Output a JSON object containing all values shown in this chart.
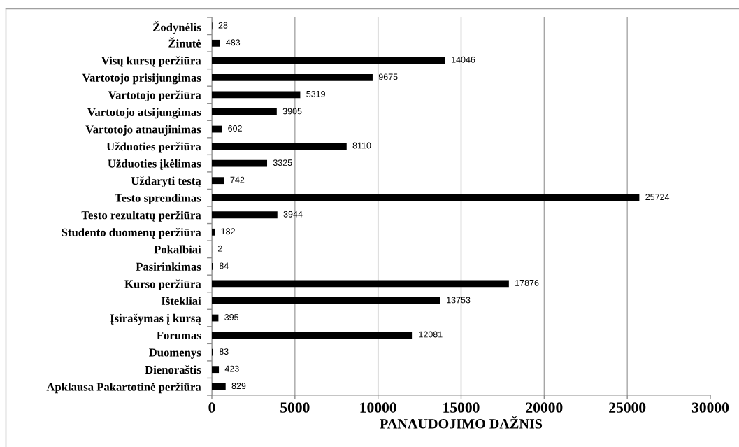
{
  "chart_data": {
    "type": "bar",
    "orientation": "horizontal",
    "xlabel": "PANAUDOJIMO DAŽNIS",
    "categories": [
      "Žodynėlis",
      "Žinutė",
      "Visų kursų peržiūra",
      "Vartotojo prisijungimas",
      "Vartotojo peržiūra",
      "Vartotojo atsijungimas",
      "Vartotojo atnaujinimas",
      "Užduoties peržiūra",
      "Užduoties įkėlimas",
      "Uždaryti testą",
      "Testo sprendimas",
      "Testo rezultatų peržiūra",
      "Studento duomenų peržiūra",
      "Pokalbiai",
      "Pasirinkimas",
      "Kurso peržiūra",
      "Ištekliai",
      "Įsirašymas į kursą",
      "Forumas",
      "Duomenys",
      "Dienoraštis",
      "Apklausa Pakartotinė peržiūra"
    ],
    "values": [
      28,
      483,
      14046,
      9675,
      5319,
      3905,
      602,
      8110,
      3325,
      742,
      25724,
      3944,
      182,
      2,
      84,
      17876,
      13753,
      395,
      12081,
      83,
      423,
      829
    ],
    "color": "#000000",
    "xlim": [
      0,
      30000
    ],
    "xticks": [
      0,
      5000,
      10000,
      15000,
      20000,
      25000,
      30000
    ],
    "grid": "x",
    "data_labels": true
  }
}
